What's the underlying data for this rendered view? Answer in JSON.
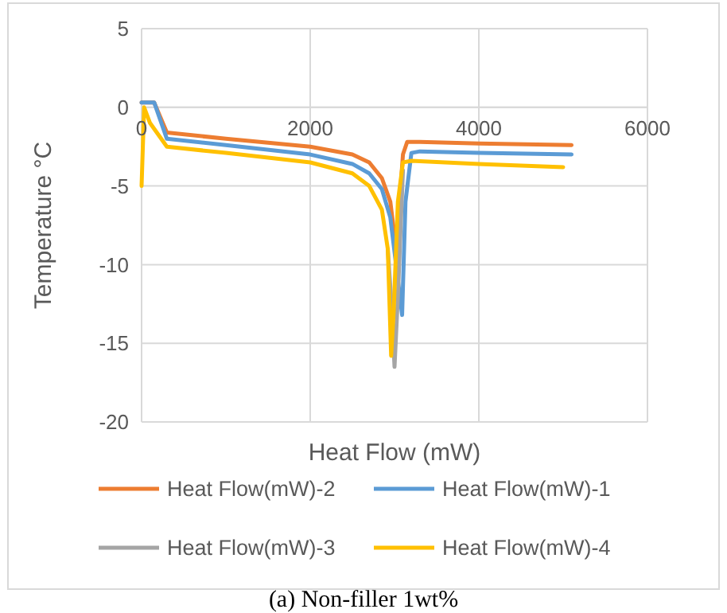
{
  "chart_data": {
    "type": "line",
    "xlabel": "Heat Flow (mW)",
    "ylabel": "Temperature °C",
    "xlim": [
      0,
      6000
    ],
    "xticks": [
      0,
      2000,
      4000,
      6000
    ],
    "ylim": [
      -20,
      5
    ],
    "yticks": [
      -20,
      -15,
      -10,
      -5,
      0,
      5
    ],
    "grid": true,
    "legend": "bottom",
    "marker": "none",
    "line_style": "solid",
    "annotations": [
      "(a) Non-filler 1wt%"
    ],
    "series": [
      {
        "name": "Heat Flow(mW)-2",
        "color": "#ed7d31",
        "x": [
          0,
          50,
          150,
          300,
          1000,
          2000,
          2500,
          2700,
          2850,
          2950,
          3020,
          3060,
          3100,
          3150,
          3300,
          4000,
          5100
        ],
        "values": [
          0.3,
          0.3,
          0.3,
          -1.6,
          -2,
          -2.5,
          -3,
          -3.5,
          -4.5,
          -6,
          -9,
          -6,
          -3,
          -2.2,
          -2.2,
          -2.3,
          -2.4
        ]
      },
      {
        "name": "Heat Flow(mW)-1",
        "color": "#5b9bd5",
        "x": [
          0,
          50,
          150,
          300,
          1000,
          2000,
          2500,
          2700,
          2850,
          2950,
          3030,
          3090,
          3130,
          3200,
          3300,
          4000,
          5100
        ],
        "values": [
          0.3,
          0.3,
          0.3,
          -2,
          -2.4,
          -3,
          -3.6,
          -4.2,
          -5.2,
          -7,
          -10.5,
          -13.2,
          -6,
          -2.9,
          -2.8,
          -2.9,
          -3
        ]
      },
      {
        "name": "Heat Flow(mW)-3",
        "color": "#a5a5a5",
        "x": [
          2920,
          2970,
          3000,
          3040,
          3100
        ],
        "values": [
          -9,
          -13,
          -16.5,
          -12,
          -4
        ]
      },
      {
        "name": "Heat Flow(mW)-4",
        "color": "#ffc000",
        "x": [
          0,
          30,
          100,
          300,
          1000,
          2000,
          2500,
          2700,
          2850,
          2920,
          2960,
          2990,
          3040,
          3100,
          3200,
          4000,
          5000
        ],
        "values": [
          -5,
          0,
          -1,
          -2.5,
          -2.9,
          -3.5,
          -4.2,
          -5,
          -6.5,
          -9,
          -15.8,
          -13,
          -6,
          -3.5,
          -3.4,
          -3.6,
          -3.8
        ]
      }
    ]
  }
}
